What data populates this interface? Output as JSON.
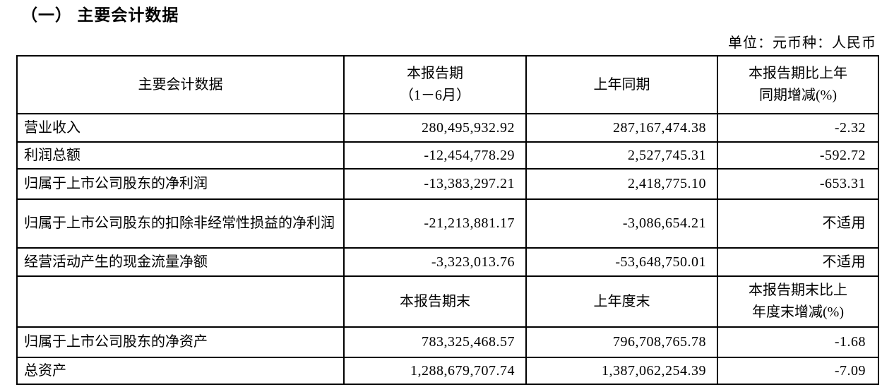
{
  "page": {
    "title": "（一） 主要会计数据",
    "unit_note": "单位：元币种：人民币"
  },
  "table": {
    "header_period": {
      "metric": "主要会计数据",
      "current_line1": "本报告期",
      "current_line2": "（1－6月）",
      "prior": "上年同期",
      "change_line1": "本报告期比上年",
      "change_line2": "同期增减(%)"
    },
    "rows_period": [
      {
        "label": "营业收入",
        "current": "280,495,932.92",
        "prior": "287,167,474.38",
        "change": "-2.32"
      },
      {
        "label": "利润总额",
        "current": "-12,454,778.29",
        "prior": "2,527,745.31",
        "change": "-592.72"
      },
      {
        "label": "归属于上市公司股东的净利润",
        "current": "-13,383,297.21",
        "prior": "2,418,775.10",
        "change": "-653.31"
      },
      {
        "label": "归属于上市公司股东的扣除非经常性损益的净利润",
        "current": "-21,213,881.17",
        "prior": "-3,086,654.21",
        "change": "不适用"
      },
      {
        "label": "经营活动产生的现金流量净额",
        "current": "-3,323,013.76",
        "prior": "-53,648,750.01",
        "change": "不适用"
      }
    ],
    "header_end": {
      "metric": "",
      "current": "本报告期末",
      "prior": "上年度末",
      "change_line1": "本报告期末比上",
      "change_line2": "年度末增减(%)"
    },
    "rows_end": [
      {
        "label": "归属于上市公司股东的净资产",
        "current": "783,325,468.57",
        "prior": "796,708,765.78",
        "change": "-1.68"
      },
      {
        "label": "总资产",
        "current": "1,288,679,707.74",
        "prior": "1,387,062,254.39",
        "change": "-7.09"
      }
    ]
  }
}
